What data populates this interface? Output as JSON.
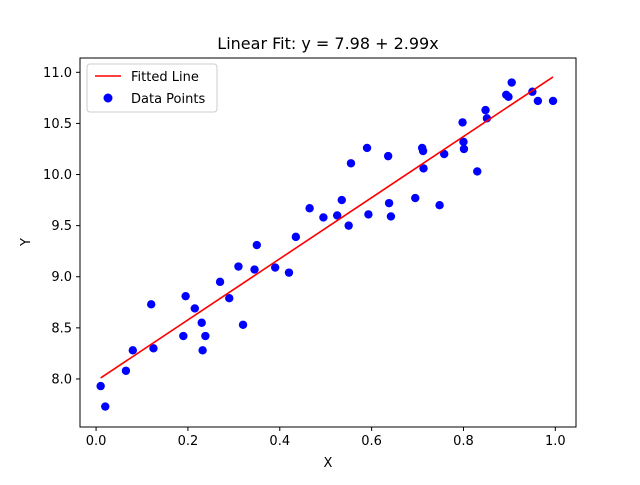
{
  "chart_data": {
    "type": "scatter",
    "title": "Linear Fit: y = 7.98 + 2.99x",
    "xlabel": "X",
    "ylabel": "Y",
    "xlim": [
      -0.035,
      1.045
    ],
    "ylim": [
      7.53,
      11.14
    ],
    "xticks": [
      0.0,
      0.2,
      0.4,
      0.6,
      0.8,
      1.0
    ],
    "xtick_labels": [
      "0.0",
      "0.2",
      "0.4",
      "0.6",
      "0.8",
      "1.0"
    ],
    "yticks": [
      8.0,
      8.5,
      9.0,
      9.5,
      10.0,
      10.5,
      11.0
    ],
    "ytick_labels": [
      "8.0",
      "8.5",
      "9.0",
      "9.5",
      "10.0",
      "10.5",
      "11.0"
    ],
    "grid": false,
    "legend_position": "top-left",
    "colors": {
      "line": "#ff0000",
      "points": "#0000ff",
      "axes": "#000000"
    },
    "series": [
      {
        "name": "Fitted Line",
        "kind": "line",
        "x": [
          0.01,
          0.995
        ],
        "y": [
          8.01,
          10.955
        ]
      },
      {
        "name": "Data Points",
        "kind": "scatter",
        "points": [
          [
            0.01,
            7.93
          ],
          [
            0.02,
            7.73
          ],
          [
            0.065,
            8.08
          ],
          [
            0.08,
            8.28
          ],
          [
            0.12,
            8.73
          ],
          [
            0.125,
            8.3
          ],
          [
            0.19,
            8.42
          ],
          [
            0.195,
            8.81
          ],
          [
            0.215,
            8.69
          ],
          [
            0.23,
            8.55
          ],
          [
            0.232,
            8.28
          ],
          [
            0.238,
            8.42
          ],
          [
            0.27,
            8.95
          ],
          [
            0.29,
            8.79
          ],
          [
            0.31,
            9.1
          ],
          [
            0.32,
            8.53
          ],
          [
            0.345,
            9.07
          ],
          [
            0.35,
            9.31
          ],
          [
            0.39,
            9.09
          ],
          [
            0.42,
            9.04
          ],
          [
            0.435,
            9.39
          ],
          [
            0.465,
            9.67
          ],
          [
            0.495,
            9.58
          ],
          [
            0.525,
            9.6
          ],
          [
            0.535,
            9.75
          ],
          [
            0.55,
            9.5
          ],
          [
            0.555,
            10.11
          ],
          [
            0.59,
            10.26
          ],
          [
            0.593,
            9.61
          ],
          [
            0.636,
            10.18
          ],
          [
            0.638,
            9.72
          ],
          [
            0.642,
            9.59
          ],
          [
            0.695,
            9.77
          ],
          [
            0.71,
            10.26
          ],
          [
            0.712,
            10.23
          ],
          [
            0.713,
            10.06
          ],
          [
            0.748,
            9.7
          ],
          [
            0.758,
            10.2
          ],
          [
            0.798,
            10.51
          ],
          [
            0.8,
            10.32
          ],
          [
            0.801,
            10.25
          ],
          [
            0.83,
            10.03
          ],
          [
            0.848,
            10.63
          ],
          [
            0.851,
            10.55
          ],
          [
            0.893,
            10.78
          ],
          [
            0.898,
            10.76
          ],
          [
            0.905,
            10.9
          ],
          [
            0.95,
            10.81
          ],
          [
            0.962,
            10.72
          ],
          [
            0.995,
            10.72
          ]
        ]
      }
    ]
  }
}
